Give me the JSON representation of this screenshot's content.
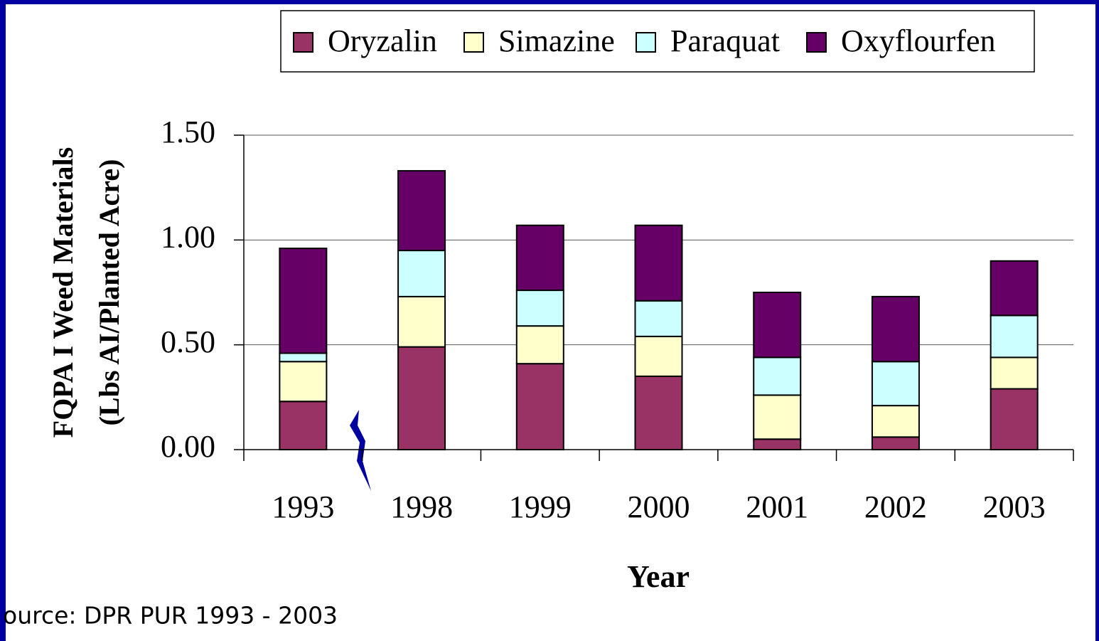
{
  "chart_data": {
    "type": "stacked_bar",
    "y_label_lines": [
      "FQPA I Weed Materials",
      "(Lbs AI/Planted Acre)"
    ],
    "x_label": "Year",
    "source": "ource: DPR PUR 1993 - 2003",
    "categories": [
      "1993",
      "1998",
      "1999",
      "2000",
      "2001",
      "2002",
      "2003"
    ],
    "series": [
      {
        "name": "Oryzalin",
        "color": "#993366",
        "values": [
          0.23,
          0.49,
          0.41,
          0.35,
          0.05,
          0.06,
          0.29
        ]
      },
      {
        "name": "Simazine",
        "color": "#ffffcc",
        "values": [
          0.19,
          0.24,
          0.18,
          0.19,
          0.21,
          0.15,
          0.15
        ]
      },
      {
        "name": "Paraquat",
        "color": "#ccffff",
        "values": [
          0.04,
          0.22,
          0.17,
          0.17,
          0.18,
          0.21,
          0.2
        ]
      },
      {
        "name": "Oxyflourfen",
        "color": "#660066",
        "values": [
          0.5,
          0.38,
          0.31,
          0.36,
          0.31,
          0.31,
          0.26
        ]
      }
    ],
    "ylim": [
      0,
      1.5
    ],
    "yticks": [
      {
        "value": 0,
        "label": "0.00"
      },
      {
        "value": 0.5,
        "label": "0.50"
      },
      {
        "value": 1,
        "label": "1.00"
      },
      {
        "value": 1.5,
        "label": "1.50"
      }
    ],
    "grid": true,
    "legend": "top"
  }
}
